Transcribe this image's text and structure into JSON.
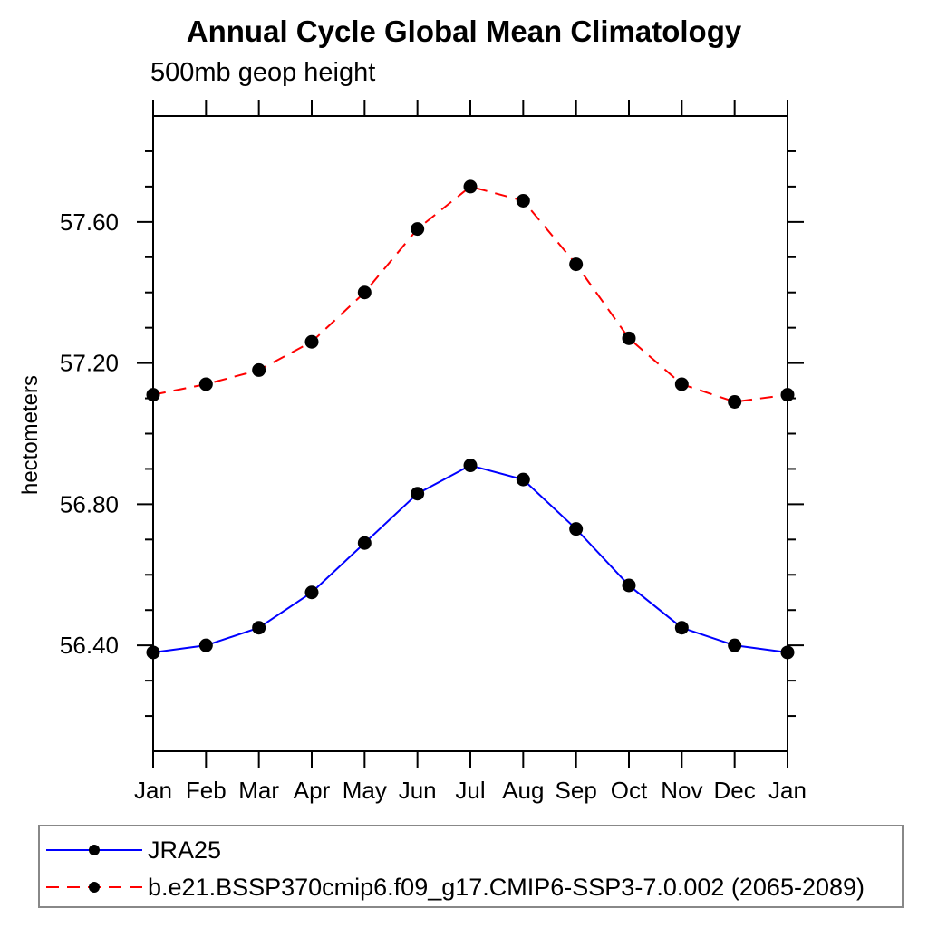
{
  "header": {
    "title": "Annual Cycle Global Mean Climatology",
    "subtitle": "500mb geop height"
  },
  "chart_data": {
    "type": "line",
    "title": "Annual Cycle Global Mean Climatology",
    "subtitle": "500mb geop height",
    "xlabel": "",
    "ylabel": "hectometers",
    "categories": [
      "Jan",
      "Feb",
      "Mar",
      "Apr",
      "May",
      "Jun",
      "Jul",
      "Aug",
      "Sep",
      "Oct",
      "Nov",
      "Dec",
      "Jan"
    ],
    "series": [
      {
        "name": "JRA25",
        "color": "#0000ff",
        "line_style": "solid",
        "marker": "filled-circle",
        "marker_color": "#000000",
        "values": [
          56.38,
          56.4,
          56.45,
          56.55,
          56.69,
          56.83,
          56.91,
          56.87,
          56.73,
          56.57,
          56.45,
          56.4,
          56.38
        ]
      },
      {
        "name": "b.e21.BSSP370cmip6.f09_g17.CMIP6-SSP3-7.0.002 (2065-2089)",
        "color": "#ff0000",
        "line_style": "dashed",
        "marker": "filled-circle",
        "marker_color": "#000000",
        "values": [
          57.11,
          57.14,
          57.18,
          57.26,
          57.4,
          57.58,
          57.7,
          57.66,
          57.48,
          57.27,
          57.14,
          57.09,
          57.11
        ]
      }
    ],
    "ylim": [
      56.1,
      57.9
    ],
    "y_major_ticks": [
      56.4,
      56.8,
      57.2,
      57.6
    ],
    "y_minor_step": 0.1,
    "y_tick_format": "2dp",
    "grid": false,
    "frame": "box-with-outward-ticks",
    "legend_position": "bottom-left-box"
  }
}
